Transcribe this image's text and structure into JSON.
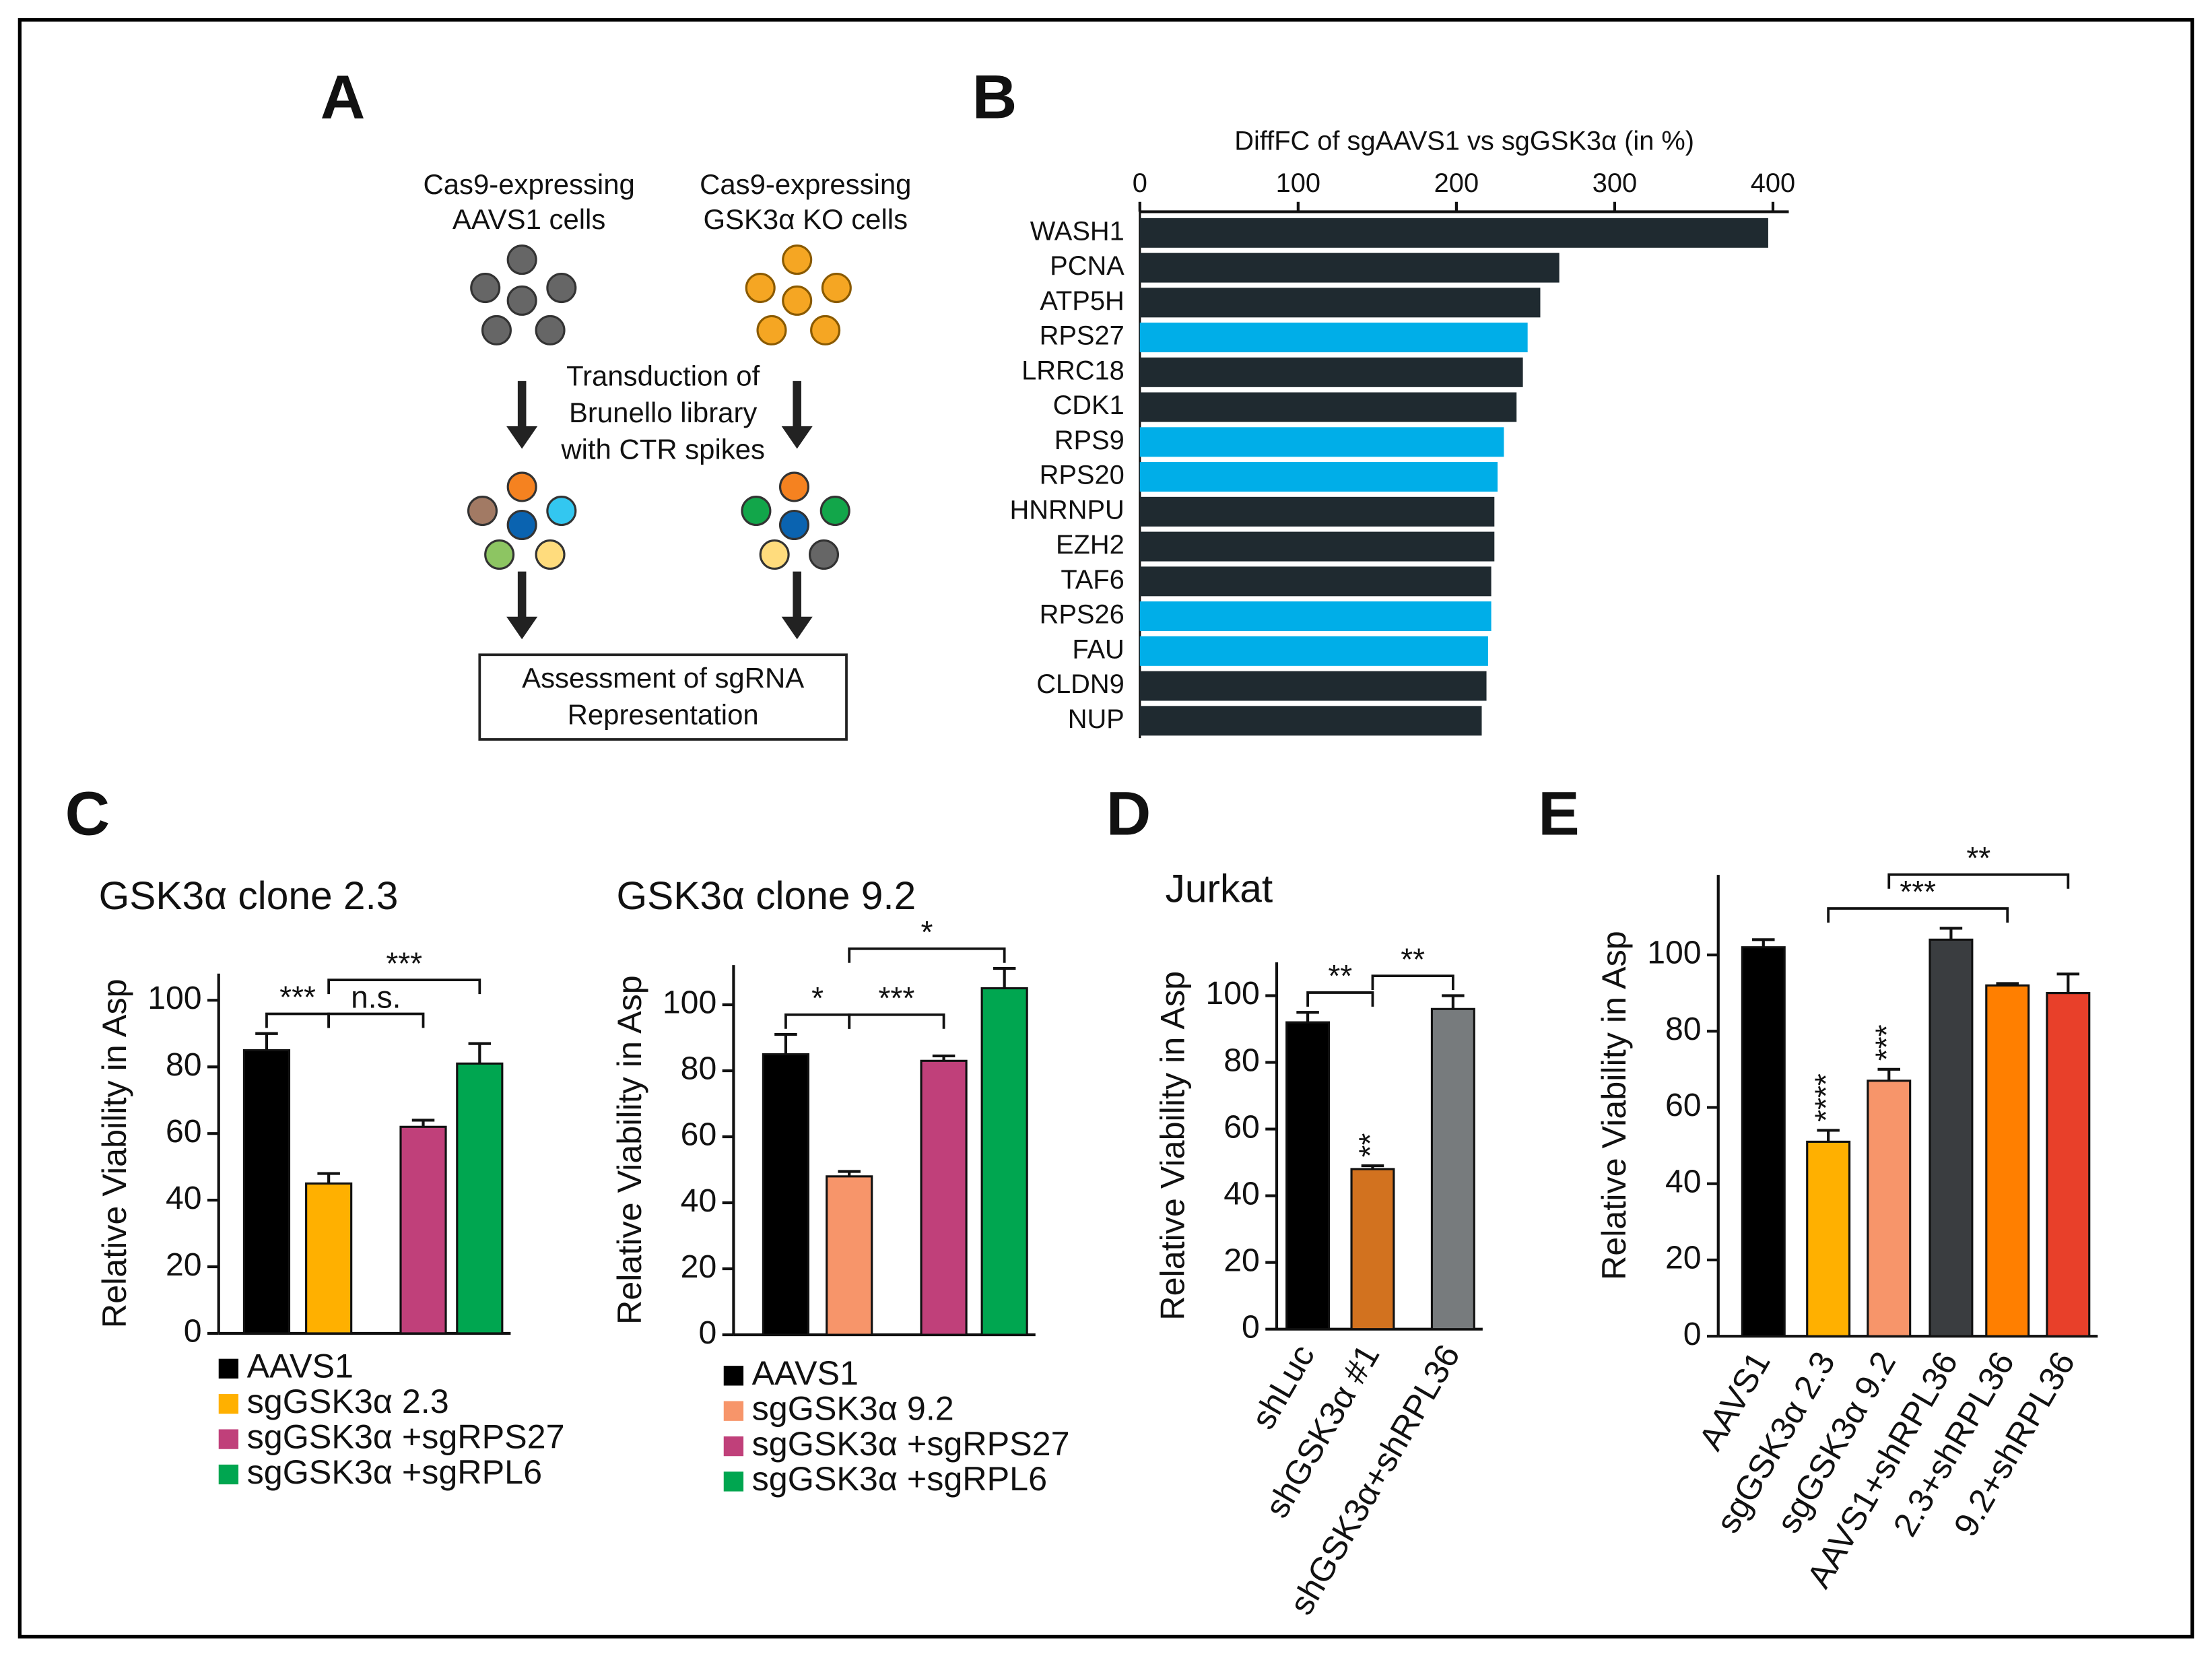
{
  "panel_labels": [
    "A",
    "B",
    "C",
    "D",
    "E"
  ],
  "diagram": {
    "left_cells": [
      "Cas9-expressing",
      "AAVS1 cells"
    ],
    "right_cells": [
      "Cas9-expressing",
      "GSK3α KO cells"
    ],
    "transduction": [
      "Transduction of",
      "Brunello library",
      "with CTR spikes"
    ],
    "assessment": [
      "Assessment of sgRNA",
      "Representation"
    ]
  },
  "chart_data": [
    {
      "type": "hbar",
      "title": "DiffFC of sgAAVS1 vs sgGSK3α (in %)",
      "categories": [
        "WASH1",
        "PCNA",
        "ATP5H",
        "RPS27",
        "LRRC18",
        "CDK1",
        "RPS9",
        "RPS20",
        "HNRNPU",
        "EZH2",
        "TAF6",
        "RPS26",
        "FAU",
        "CLDN9",
        "NUP"
      ],
      "values": [
        397,
        265,
        253,
        245,
        242,
        238,
        230,
        226,
        224,
        224,
        222,
        222,
        220,
        219,
        216
      ],
      "colors": [
        "#1f2a30",
        "#1f2a30",
        "#1f2a30",
        "#00aee8",
        "#1f2a30",
        "#1f2a30",
        "#00aee8",
        "#00aee8",
        "#1f2a30",
        "#1f2a30",
        "#1f2a30",
        "#00aee8",
        "#00aee8",
        "#1f2a30",
        "#1f2a30"
      ],
      "xlim": [
        0,
        410
      ],
      "xticks": [
        0,
        100,
        200,
        300,
        400
      ]
    },
    {
      "type": "bar",
      "title": "GSK3α clone 2.3",
      "y_label": "Relative Viability in Asp",
      "legend": true,
      "categories": [
        "AAVS1",
        "sgGSK3α 2.3",
        "sgGSK3α +sgRPS27",
        "sgGSK3α +sgRPL6"
      ],
      "values": [
        85,
        45,
        62,
        81
      ],
      "errors": [
        5,
        3,
        2,
        6
      ],
      "colors": [
        "#000000",
        "#ffb000",
        "#c0407a",
        "#00a650"
      ],
      "ylim": [
        0,
        108
      ],
      "yticks": [
        0,
        20,
        40,
        60,
        80,
        100
      ],
      "brackets": [
        {
          "text": "***",
          "between": [
            0,
            1
          ]
        },
        {
          "text": "n.s.",
          "between": [
            1,
            2
          ]
        },
        {
          "text": "***",
          "between": [
            1,
            3
          ]
        }
      ]
    },
    {
      "type": "bar",
      "title": "GSK3α clone 9.2",
      "y_label": "Relative Viability in Asp",
      "legend": true,
      "categories": [
        "AAVS1",
        "sgGSK3α 9.2",
        "sgGSK3α +sgRPS27",
        "sgGSK3α +sgRPL6"
      ],
      "values": [
        85,
        48,
        83,
        105
      ],
      "errors": [
        6,
        1.5,
        1.5,
        6
      ],
      "colors": [
        "#000000",
        "#f7956a",
        "#c0407a",
        "#00a650"
      ],
      "ylim": [
        0,
        112
      ],
      "yticks": [
        0,
        20,
        40,
        60,
        80,
        100
      ],
      "brackets": [
        {
          "text": "*",
          "between": [
            0,
            1
          ]
        },
        {
          "text": "***",
          "between": [
            1,
            2
          ]
        },
        {
          "text": "*",
          "between": [
            1,
            3
          ]
        }
      ]
    },
    {
      "type": "bar",
      "title": "Jurkat",
      "y_label": "Relative Viability in Asp",
      "legend": false,
      "categories": [
        "shLuc",
        "shGSK3α #1",
        "shGSK3α+shRPL36"
      ],
      "values": [
        92,
        48,
        96
      ],
      "errors": [
        3,
        1,
        4
      ],
      "colors": [
        "#000000",
        "#d2721f",
        "#777b7d"
      ],
      "ylim": [
        0,
        110
      ],
      "yticks": [
        0,
        20,
        40,
        60,
        80,
        100
      ],
      "annotations": [
        {
          "text": "**",
          "category": 1
        }
      ],
      "brackets": [
        {
          "text": "**",
          "between": [
            0,
            1
          ]
        },
        {
          "text": "**",
          "between": [
            1,
            2
          ]
        }
      ]
    },
    {
      "type": "bar",
      "y_label": "Relative Viability in Asp",
      "legend": false,
      "categories": [
        "AAVS1",
        "sgGSK3α 2.3",
        "sgGSK3α 9.2",
        "AAVS1+shRPL36",
        "2.3+shRPL36",
        "9.2+shRPL36"
      ],
      "values": [
        102,
        51,
        67,
        104,
        92,
        90
      ],
      "errors": [
        2,
        3,
        3,
        3,
        0.5,
        5
      ],
      "colors": [
        "#000000",
        "#ffb000",
        "#f7956a",
        "#3a3d40",
        "#ff7f00",
        "#e8402a"
      ],
      "ylim": [
        0,
        121
      ],
      "yticks": [
        0,
        20,
        40,
        60,
        80,
        100
      ],
      "annotations": [
        {
          "text": "****",
          "category": 1
        },
        {
          "text": "***",
          "category": 2
        }
      ],
      "brackets": [
        {
          "text": "***",
          "between": [
            1,
            4
          ]
        },
        {
          "text": "**",
          "between": [
            2,
            5
          ]
        }
      ]
    }
  ]
}
